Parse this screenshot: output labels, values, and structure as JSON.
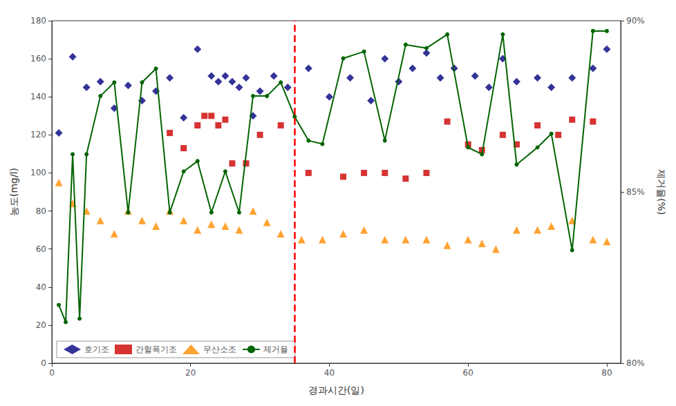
{
  "chart_data": {
    "type": "scatter",
    "x_label": "경과시간(일)",
    "y_label": "농도(mg/l)",
    "y2_label": "제거율(%)",
    "xlim": [
      0,
      82
    ],
    "xticks": [
      0,
      20,
      40,
      60,
      80
    ],
    "ylim": [
      0,
      180
    ],
    "yticks": [
      0,
      20,
      40,
      60,
      80,
      100,
      120,
      140,
      160,
      180
    ],
    "y2lim": [
      80,
      90
    ],
    "y2ticks": [
      {
        "value": 80,
        "label": "80%"
      },
      {
        "value": 85,
        "label": "85%"
      },
      {
        "value": 90,
        "label": "90%"
      }
    ],
    "grid": false,
    "legend": "lower left",
    "vline": {
      "x": 35,
      "color": "#ff0000",
      "line_style": "dashed"
    },
    "series": [
      {
        "name": "호기조",
        "type": "scatter",
        "color": "#000080",
        "marker": "diamond",
        "x": [
          1,
          3,
          5,
          7,
          9,
          11,
          13,
          15,
          17,
          19,
          21,
          23,
          24,
          25,
          26,
          27,
          28,
          29,
          30,
          32,
          34,
          37,
          40,
          43,
          46,
          48,
          50,
          52,
          54,
          56,
          58,
          61,
          63,
          65,
          67,
          70,
          72,
          75,
          78,
          80
        ],
        "values": [
          121,
          161,
          145,
          148,
          134,
          146,
          138,
          143,
          150,
          129,
          165,
          151,
          148,
          151,
          148,
          145,
          150,
          130,
          143,
          151,
          145,
          155,
          140,
          150,
          138,
          160,
          148,
          155,
          163,
          150,
          155,
          151,
          145,
          160,
          148,
          150,
          145,
          150,
          155,
          165
        ]
      },
      {
        "name": "간헐폭기조",
        "type": "scatter",
        "color": "#cc0000",
        "marker": "square",
        "x": [
          17,
          19,
          21,
          22,
          23,
          24,
          25,
          26,
          28,
          30,
          33,
          37,
          42,
          45,
          48,
          51,
          54,
          57,
          60,
          62,
          65,
          67,
          70,
          73,
          75,
          78
        ],
        "values": [
          121,
          113,
          125,
          130,
          130,
          125,
          128,
          105,
          105,
          120,
          125,
          100,
          98,
          100,
          100,
          97,
          100,
          127,
          115,
          112,
          120,
          115,
          125,
          120,
          128,
          127
        ]
      },
      {
        "name": "무산소조",
        "type": "scatter",
        "color": "#ff8c00",
        "marker": "triangle",
        "x": [
          1,
          3,
          5,
          7,
          9,
          11,
          13,
          15,
          17,
          19,
          21,
          23,
          25,
          27,
          29,
          31,
          33,
          36,
          39,
          42,
          45,
          48,
          51,
          54,
          57,
          60,
          62,
          64,
          67,
          70,
          72,
          75,
          78,
          80
        ],
        "values": [
          95,
          84,
          80,
          75,
          68,
          80,
          75,
          72,
          80,
          75,
          70,
          73,
          72,
          70,
          80,
          74,
          68,
          65,
          65,
          68,
          70,
          65,
          65,
          65,
          62,
          65,
          63,
          60,
          70,
          70,
          72,
          75,
          65,
          64
        ]
      },
      {
        "name": "제거율",
        "type": "line",
        "axis": "y2",
        "color": "#006400",
        "marker": "circle",
        "x": [
          1,
          2,
          3,
          4,
          5,
          7,
          9,
          11,
          13,
          15,
          17,
          19,
          21,
          23,
          25,
          27,
          29,
          31,
          33,
          35,
          37,
          39,
          42,
          45,
          48,
          51,
          54,
          57,
          60,
          62,
          65,
          67,
          70,
          72,
          75,
          78,
          80
        ],
        "values": [
          81.7,
          81.2,
          86.1,
          81.3,
          86.1,
          87.8,
          88.2,
          84.4,
          88.2,
          88.6,
          84.4,
          85.6,
          85.9,
          84.4,
          85.6,
          84.4,
          87.8,
          87.8,
          88.2,
          87.2,
          86.5,
          86.4,
          88.9,
          89.1,
          86.5,
          89.3,
          89.2,
          89.6,
          86.3,
          86.1,
          89.6,
          85.8,
          86.3,
          86.7,
          83.3,
          89.7,
          89.7
        ]
      }
    ]
  }
}
